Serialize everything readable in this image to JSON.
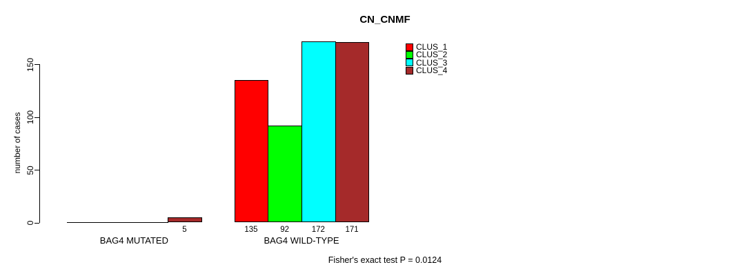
{
  "chart_data": {
    "type": "bar",
    "title": "CN_CNMF",
    "ylabel": "number of cases",
    "xlabel": "",
    "annotation": "Fisher's exact test P = 0.0124",
    "yticks": [
      0,
      50,
      100,
      150
    ],
    "ylim": [
      0,
      172
    ],
    "grid": false,
    "legend_position": "top-right",
    "categories": [
      "BAG4 MUTATED",
      "BAG4 WILD-TYPE"
    ],
    "series": [
      {
        "name": "CLUS_1",
        "color": "#ff0000",
        "values": [
          0,
          135
        ]
      },
      {
        "name": "CLUS_2",
        "color": "#00ff00",
        "values": [
          0,
          92
        ]
      },
      {
        "name": "CLUS_3",
        "color": "#00ffff",
        "values": [
          0,
          172
        ]
      },
      {
        "name": "CLUS_4",
        "color": "#a52a2a",
        "values": [
          5,
          171
        ]
      }
    ],
    "bar_value_labels_shown_when": "value > 0"
  }
}
